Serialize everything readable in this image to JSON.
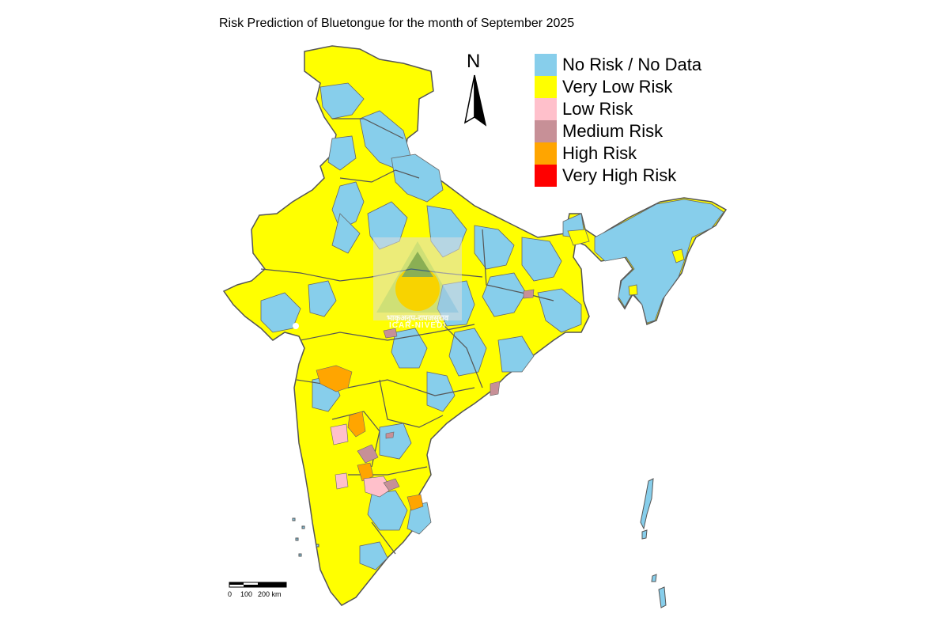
{
  "title": "Risk Prediction of Bluetongue for the month of September 2025",
  "legend": [
    {
      "label": "No Risk / No Data",
      "color": "#87ceeb"
    },
    {
      "label": "Very Low Risk",
      "color": "#ffff00"
    },
    {
      "label": "Low Risk",
      "color": "#ffc0cb"
    },
    {
      "label": "Medium Risk",
      "color": "#c79097"
    },
    {
      "label": "High Risk",
      "color": "#ffa500"
    },
    {
      "label": "Very High Risk",
      "color": "#ff0000"
    }
  ],
  "north_arrow": {
    "label": "N"
  },
  "scale_bar": {
    "ticks": [
      "0",
      "100",
      "200 km"
    ]
  },
  "watermark": {
    "line1": "भाकृअनुप-रापजसुराव",
    "line2": "ICAR-NIVEDI"
  },
  "colors": {
    "border": "#555555",
    "no_risk": "#87ceeb",
    "very_low": "#ffff00"
  }
}
